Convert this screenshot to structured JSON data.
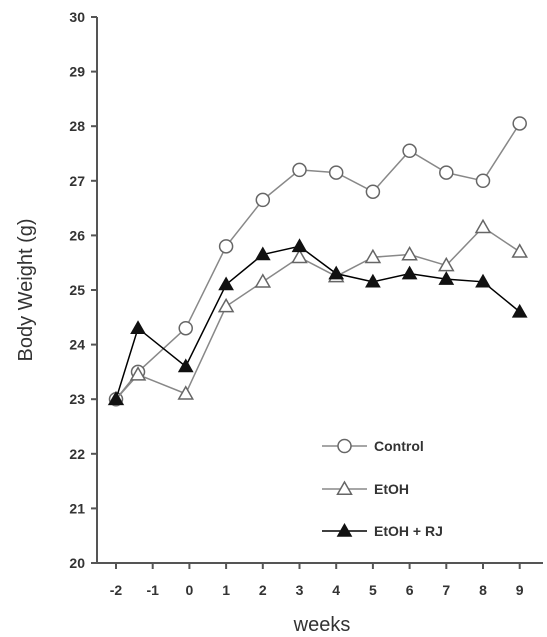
{
  "chart_data": {
    "type": "line",
    "xlabel": "weeks",
    "ylabel": "Body Weight (g)",
    "x_ticks": [
      "-2",
      "-1",
      "0",
      "1",
      "2",
      "3",
      "4",
      "5",
      "6",
      "7",
      "8",
      "9"
    ],
    "y_ticks": [
      "20",
      "21",
      "22",
      "23",
      "24",
      "25",
      "26",
      "27",
      "28",
      "29",
      "30"
    ],
    "ylim": [
      20,
      30
    ],
    "grid": false,
    "legend_position": "bottom-right",
    "series": [
      {
        "name": "Control",
        "marker": "circle-open",
        "color": "#888888",
        "x": [
          -2,
          -1.4,
          -0.1,
          1,
          2,
          3,
          4,
          5,
          6,
          7,
          8,
          9
        ],
        "y": [
          23.0,
          23.5,
          24.3,
          25.8,
          26.65,
          27.2,
          27.15,
          26.8,
          27.55,
          27.15,
          27.0,
          28.05
        ]
      },
      {
        "name": "EtOH",
        "marker": "triangle-open",
        "color": "#888888",
        "x": [
          -2,
          -1.4,
          -0.1,
          1,
          2,
          3,
          4,
          5,
          6,
          7,
          8,
          9
        ],
        "y": [
          23.0,
          23.45,
          23.1,
          24.7,
          25.15,
          25.6,
          25.25,
          25.6,
          25.65,
          25.45,
          26.15,
          25.7
        ]
      },
      {
        "name": "EtOH + RJ",
        "marker": "triangle-filled",
        "color": "#000000",
        "x": [
          -2,
          -1.4,
          -0.1,
          1,
          2,
          3,
          4,
          5,
          6,
          7,
          8,
          9
        ],
        "y": [
          23.0,
          24.3,
          23.6,
          25.1,
          25.65,
          25.8,
          25.3,
          25.15,
          25.3,
          25.2,
          25.15,
          24.6
        ]
      }
    ]
  }
}
